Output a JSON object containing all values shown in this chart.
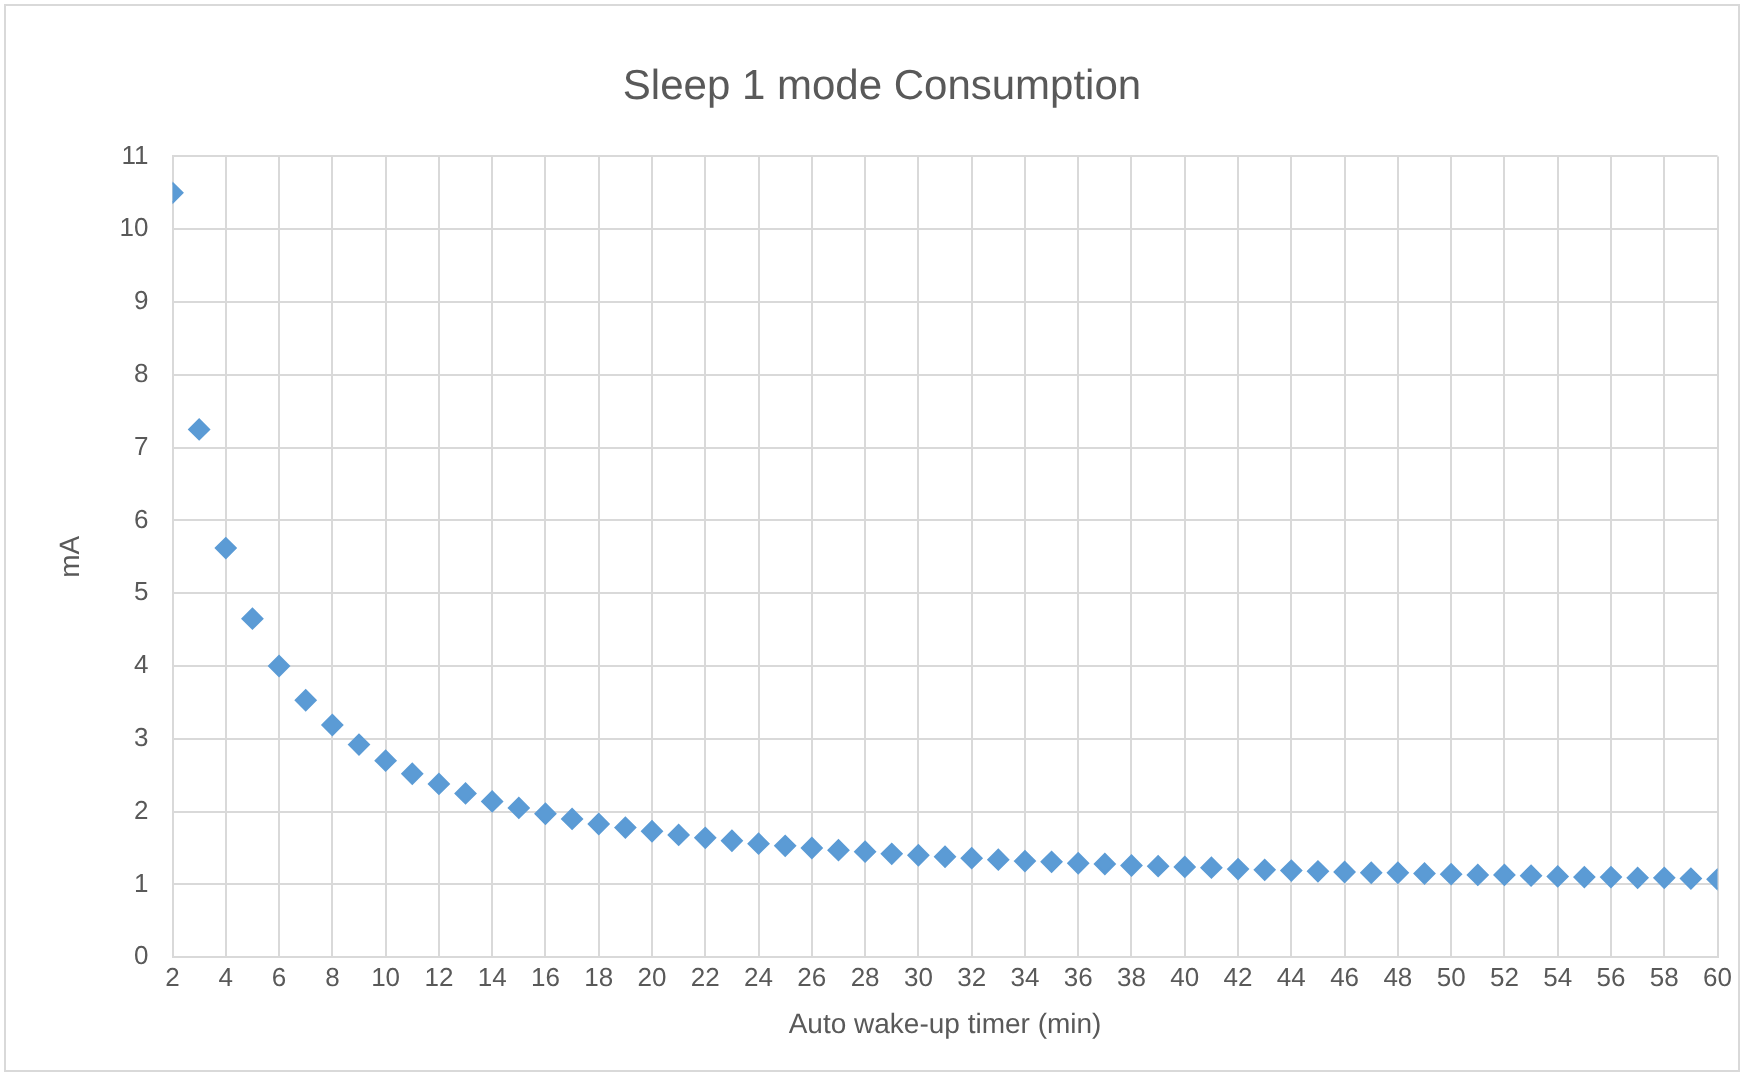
{
  "chart_data": {
    "type": "scatter",
    "title": "Sleep 1 mode Consumption",
    "xlabel": "Auto wake-up timer (min)",
    "ylabel": "mA",
    "x": [
      2,
      3,
      4,
      5,
      6,
      7,
      8,
      9,
      10,
      11,
      12,
      13,
      14,
      15,
      16,
      17,
      18,
      19,
      20,
      21,
      22,
      23,
      24,
      25,
      26,
      27,
      28,
      29,
      30,
      31,
      32,
      33,
      34,
      35,
      36,
      37,
      38,
      39,
      40,
      41,
      42,
      43,
      44,
      45,
      46,
      47,
      48,
      49,
      50,
      51,
      52,
      53,
      54,
      55,
      56,
      57,
      58,
      59,
      60
    ],
    "series": [
      {
        "color": "#5b9bd5",
        "values": [
          10.5,
          7.25,
          5.62,
          4.65,
          4.0,
          3.53,
          3.19,
          2.92,
          2.7,
          2.52,
          2.38,
          2.25,
          2.14,
          2.05,
          1.97,
          1.9,
          1.83,
          1.78,
          1.73,
          1.68,
          1.64,
          1.6,
          1.56,
          1.53,
          1.5,
          1.47,
          1.45,
          1.42,
          1.4,
          1.38,
          1.36,
          1.34,
          1.32,
          1.31,
          1.29,
          1.28,
          1.26,
          1.25,
          1.24,
          1.23,
          1.21,
          1.2,
          1.19,
          1.18,
          1.17,
          1.16,
          1.16,
          1.15,
          1.14,
          1.13,
          1.13,
          1.12,
          1.11,
          1.1,
          1.1,
          1.09,
          1.09,
          1.08,
          1.07
        ]
      }
    ],
    "xlim": [
      2,
      60
    ],
    "xticks": [
      2,
      4,
      6,
      8,
      10,
      12,
      14,
      16,
      18,
      20,
      22,
      24,
      26,
      28,
      30,
      32,
      34,
      36,
      38,
      40,
      42,
      44,
      46,
      48,
      50,
      52,
      54,
      56,
      58,
      60
    ],
    "ylim": [
      0,
      11
    ],
    "yticks": [
      0,
      1,
      2,
      3,
      4,
      5,
      6,
      7,
      8,
      9,
      10,
      11
    ],
    "grid": true,
    "legend": false,
    "marker": "diamond"
  }
}
